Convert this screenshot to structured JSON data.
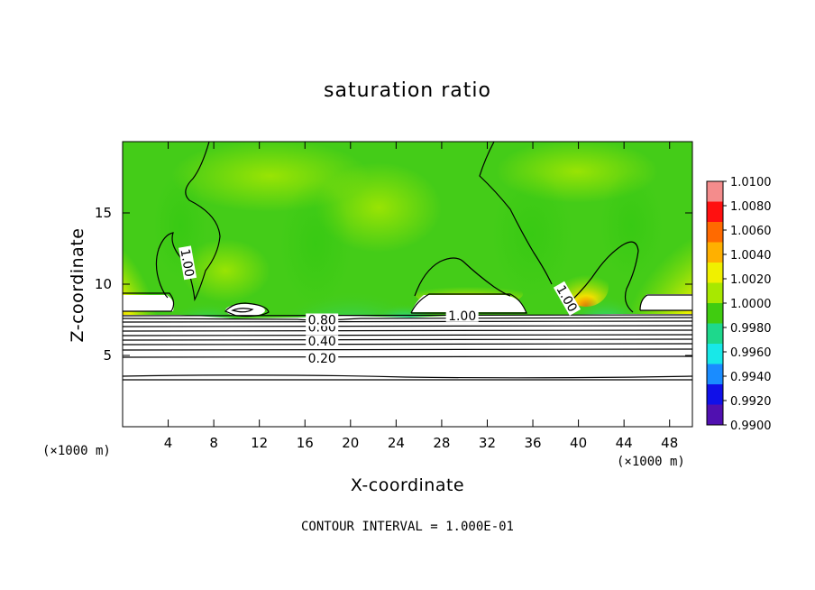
{
  "chart_data": {
    "type": "heatmap",
    "title": "saturation ratio",
    "xlabel": "X-coordinate",
    "ylabel": "Z-coordinate",
    "x_unit": "(×1000 m)",
    "note": "CONTOUR INTERVAL = 1.000E-01",
    "xlim": [
      0,
      50
    ],
    "ylim": [
      0,
      20
    ],
    "x_ticks": [
      4,
      8,
      12,
      16,
      20,
      24,
      28,
      32,
      36,
      40,
      44,
      48
    ],
    "y_ticks": [
      5,
      10,
      15
    ],
    "colorbar": {
      "min": 0.99,
      "max": 1.01,
      "levels": [
        "1.0100",
        "1.0080",
        "1.0060",
        "1.0040",
        "1.0020",
        "1.0000",
        "0.9980",
        "0.9960",
        "0.9940",
        "0.9920",
        "0.9900"
      ],
      "colors": [
        "#f48c8c",
        "#ff1010",
        "#ff6a00",
        "#ffb000",
        "#f0f000",
        "#a8e800",
        "#40cc10",
        "#1ed88c",
        "#18e8e8",
        "#1a8cff",
        "#1010e8",
        "#5010b0"
      ]
    },
    "contour_levels": [
      0.2,
      0.3,
      0.4,
      0.5,
      0.6,
      0.7,
      0.8,
      0.9,
      1.0
    ],
    "contour_labels": [
      {
        "text": "0.20",
        "x": 17.5,
        "z": 4.8
      },
      {
        "text": "0.40",
        "x": 17.5,
        "z": 6.0
      },
      {
        "text": "0.60",
        "x": 17.5,
        "z": 7.0
      },
      {
        "text": "0.80",
        "x": 17.5,
        "z": 7.5
      },
      {
        "text": "1.00",
        "x": 29.8,
        "z": 7.8
      },
      {
        "text": "1.00",
        "x": 5.7,
        "z": 11.5
      },
      {
        "text": "1.00",
        "x": 39.0,
        "z": 9.0
      }
    ]
  }
}
